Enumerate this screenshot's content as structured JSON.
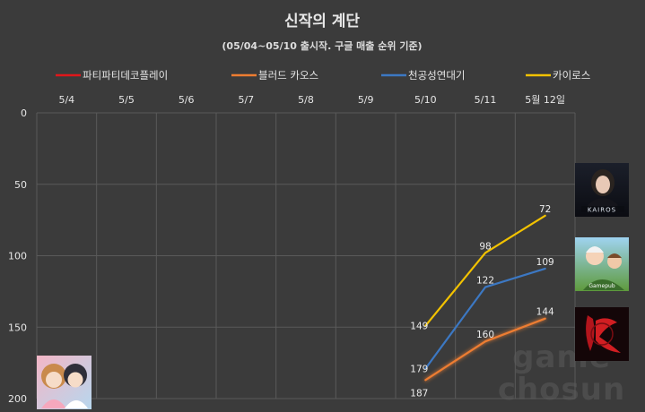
{
  "chart_data": {
    "type": "line",
    "title": "신작의 계단",
    "subtitle": "(05/04~05/10 출시작. 구글 매출 순위 기준)",
    "categories": [
      "5/4",
      "5/5",
      "5/6",
      "5/7",
      "5/8",
      "5/9",
      "5/10",
      "5/11",
      "5월 12일"
    ],
    "y_axis": {
      "reversed": true,
      "ylim": [
        0,
        200
      ],
      "ticks": [
        0,
        50,
        100,
        150,
        200
      ]
    },
    "grid": true,
    "legend_position": "top",
    "series": [
      {
        "name": "파티파티데코플레이",
        "color": "#e0161b",
        "values": [
          null,
          null,
          null,
          null,
          null,
          null,
          null,
          null,
          null
        ],
        "icon": "chibi-couple-game-icon"
      },
      {
        "name": "블러드 카오스",
        "color": "#ed7d31",
        "values": [
          null,
          null,
          null,
          null,
          null,
          null,
          187,
          160,
          144
        ],
        "icon": "blood-chaos-game-icon"
      },
      {
        "name": "천공성연대기",
        "color": "#3c78c3",
        "values": [
          null,
          null,
          null,
          null,
          null,
          null,
          179,
          122,
          109
        ],
        "icon": "gamepub-game-icon"
      },
      {
        "name": "카이로스",
        "color": "#f2c200",
        "values": [
          null,
          null,
          null,
          null,
          null,
          null,
          149,
          98,
          72
        ],
        "icon": "kairos-game-icon"
      }
    ]
  },
  "watermark": {
    "line1": "game",
    "line2": "chosun"
  }
}
